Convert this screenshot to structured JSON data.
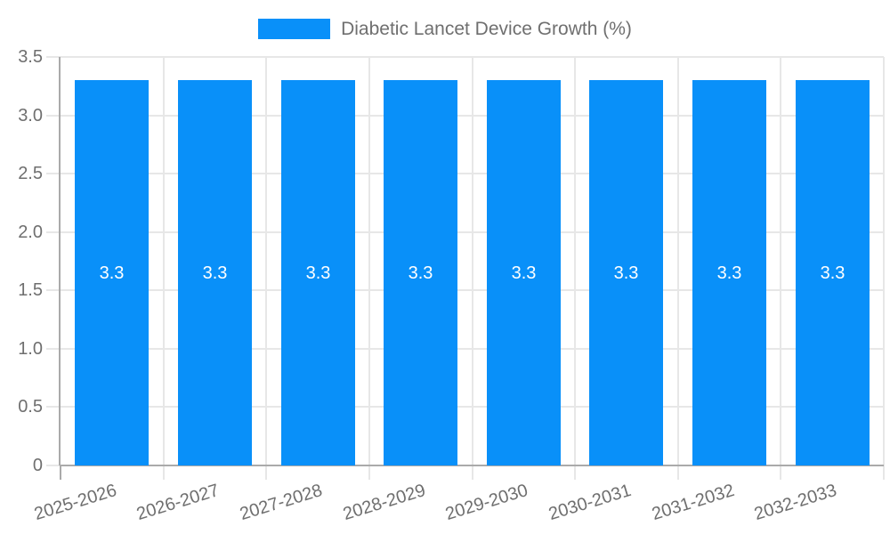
{
  "legend": {
    "label": "Diabetic Lancet Device Growth (%)"
  },
  "colors": {
    "bar": "#0990f9",
    "grid": "#e7e7e7",
    "axis": "#aaaaaa",
    "text": "#6f6f6f",
    "bar_label": "#ffffff"
  },
  "chart_data": {
    "type": "bar",
    "title": "",
    "legend_entries": [
      "Diabetic Lancet Device Growth (%)"
    ],
    "legend_position": "top-center",
    "categories": [
      "2025-2026",
      "2026-2027",
      "2027-2028",
      "2028-2029",
      "2029-2030",
      "2030-2031",
      "2031-2032",
      "2032-2033"
    ],
    "values": [
      3.3,
      3.3,
      3.3,
      3.3,
      3.3,
      3.3,
      3.3,
      3.3
    ],
    "bar_labels": [
      "3.3",
      "3.3",
      "3.3",
      "3.3",
      "3.3",
      "3.3",
      "3.3",
      "3.3"
    ],
    "xlabel": "",
    "ylabel": "",
    "ylim": [
      0,
      3.5
    ],
    "yticks": [
      0,
      0.5,
      1,
      1.5,
      2,
      2.5,
      3,
      3.5
    ],
    "ytick_labels": [
      "0",
      "0.5",
      "1.0",
      "1.5",
      "2.0",
      "2.5",
      "3.0",
      "3.5"
    ],
    "grid": true
  }
}
